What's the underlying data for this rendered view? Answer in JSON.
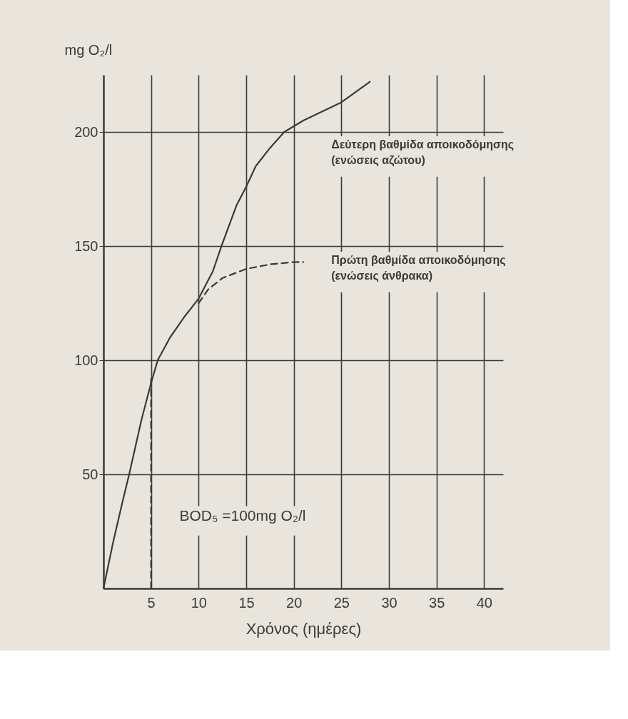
{
  "chart_data": {
    "type": "line",
    "xlabel": "Χρόνος (ημέρες)",
    "ylabel": "mg O₂/l",
    "xlim": [
      0,
      42
    ],
    "xticks": [
      5,
      10,
      15,
      20,
      25,
      30,
      35,
      40
    ],
    "ylim": [
      0,
      225
    ],
    "yticks": [
      50,
      100,
      150,
      200
    ],
    "grid": true,
    "marker": "none",
    "series": [
      {
        "color": "#3a3a3a",
        "line_style": "solid",
        "x": [
          0,
          1,
          2,
          2.7,
          4,
          5,
          5.7,
          7,
          8.5,
          10,
          11.5,
          12.4,
          14,
          15,
          16,
          17.5,
          19,
          21,
          23,
          25,
          28
        ],
        "values": [
          0,
          20,
          38,
          50,
          74,
          90,
          100,
          110,
          119,
          127,
          139,
          150,
          168,
          176,
          185,
          193,
          200,
          205,
          209,
          213,
          222
        ]
      },
      {
        "color": "#3a3a3a",
        "line_style": "dashed",
        "x": [
          10,
          11,
          12.5,
          15,
          17.5,
          20,
          21
        ],
        "values": [
          125,
          131,
          136,
          140,
          142,
          143,
          143
        ]
      },
      {
        "color": "#3a3a3a",
        "line_style": "dashed",
        "x": [
          5,
          5
        ],
        "values": [
          0,
          93
        ]
      }
    ],
    "annotations": [
      "Δεύτερη βαθμίδα αποικοδόμησης\n(ενώσεις αζώτου)",
      "Πρώτη βαθμίδα αποικοδόμησης\n(ενώσεις άνθρακα)",
      "BOD₅ =100mg O₂/l"
    ]
  }
}
